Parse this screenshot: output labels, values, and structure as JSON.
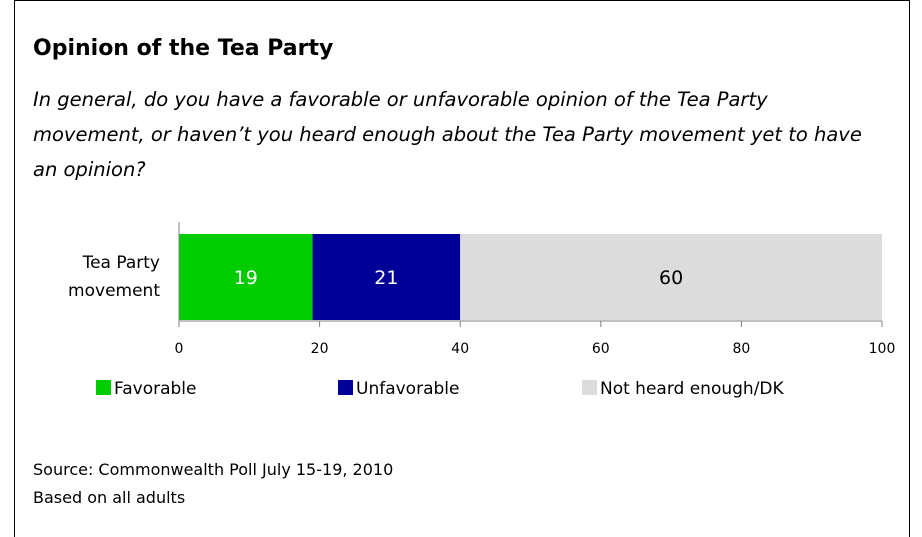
{
  "chart_data": {
    "type": "bar",
    "orientation": "horizontal",
    "stacked": true,
    "title": "Opinion of the Tea Party",
    "subtitle": "In general, do you have a favorable or unfavorable opinion of the Tea Party movement, or haven’t you heard enough about the Tea Party movement yet to have an opinion?",
    "categories": [
      "Tea Party movement"
    ],
    "category_lines": [
      "Tea Party",
      "movement"
    ],
    "series": [
      {
        "name": "Favorable",
        "values": [
          19
        ],
        "color": "#00cc00",
        "label_color": "#ffffff"
      },
      {
        "name": "Unfavorable",
        "values": [
          21
        ],
        "color": "#000099",
        "label_color": "#ffffff"
      },
      {
        "name": "Not heard enough/DK",
        "values": [
          60
        ],
        "color": "#dcdcdc",
        "label_color": "#000000"
      }
    ],
    "xlim": [
      0,
      100
    ],
    "xticks": [
      0,
      20,
      40,
      60,
      80,
      100
    ],
    "grid": false,
    "legend_position": "bottom"
  },
  "notes": {
    "source": "Source: Commonwealth Poll July 15-19, 2010",
    "base": "Based on all adults"
  }
}
